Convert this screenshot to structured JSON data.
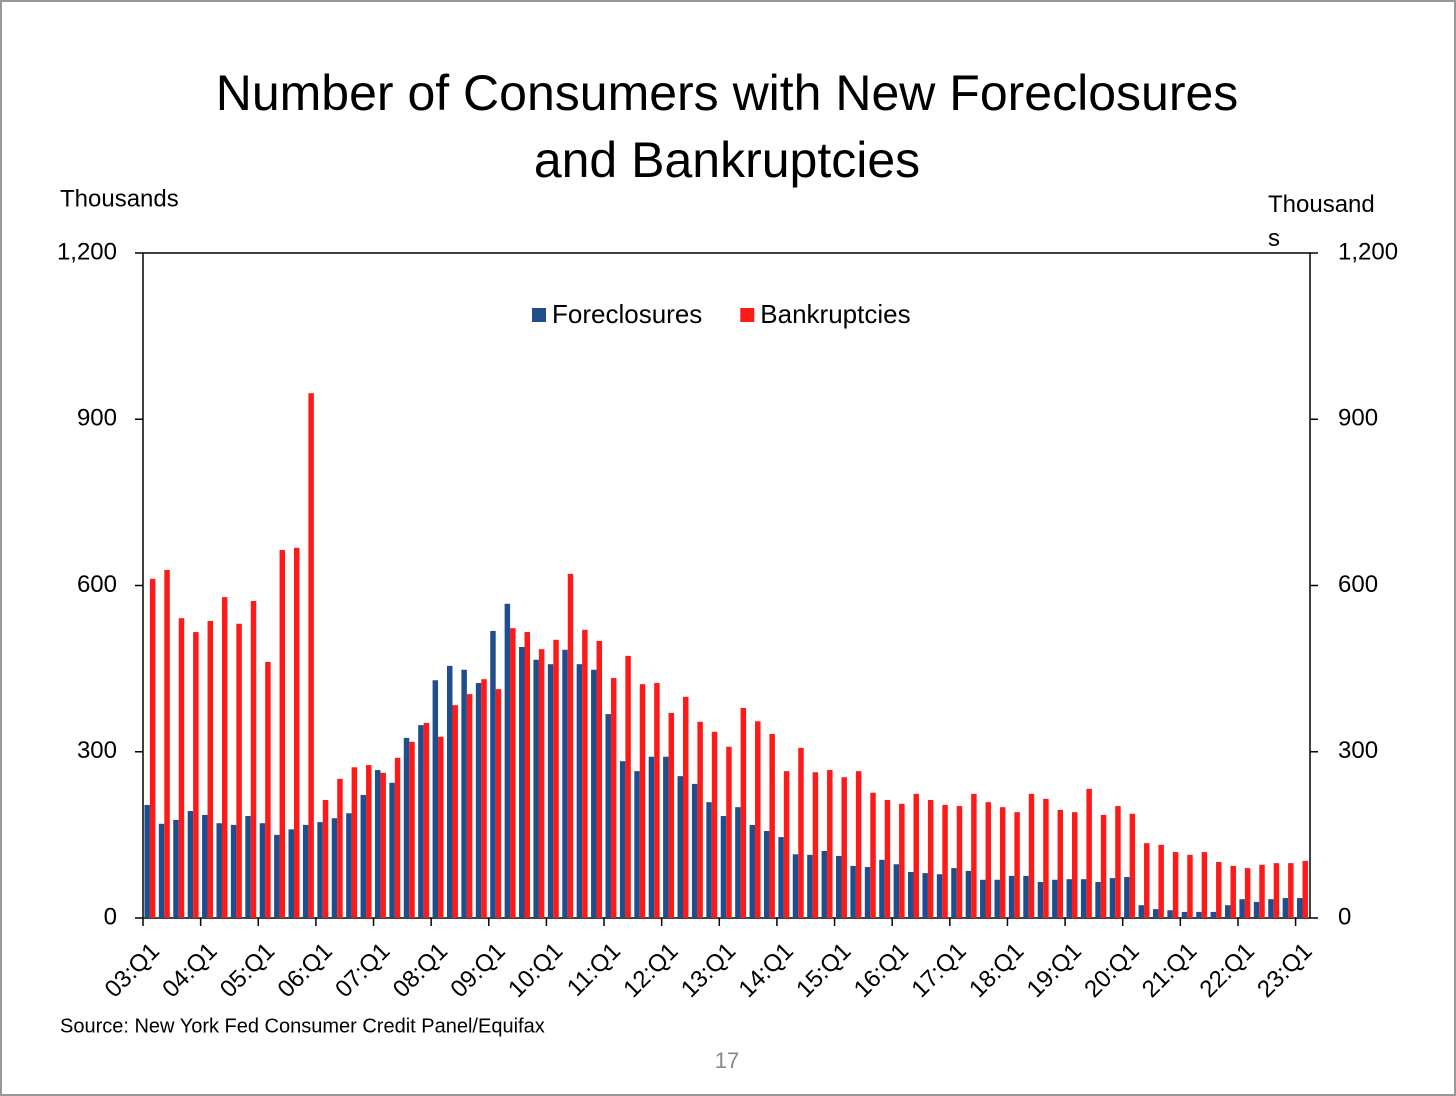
{
  "chart_data": {
    "type": "bar",
    "title": "Number of Consumers with New Foreclosures and Bankruptcies",
    "y_label": "Thousands",
    "y2_label": "Thousands",
    "source": "Source: New York Fed Consumer Credit Panel/Equifax",
    "page_number": "17",
    "categories": [
      "03:Q1",
      null,
      null,
      null,
      "04:Q1",
      null,
      null,
      null,
      "05:Q1",
      null,
      null,
      null,
      "06:Q1",
      null,
      null,
      null,
      "07:Q1",
      null,
      null,
      null,
      "08:Q1",
      null,
      null,
      null,
      "09:Q1",
      null,
      null,
      null,
      "10:Q1",
      null,
      null,
      null,
      "11:Q1",
      null,
      null,
      null,
      "12:Q1",
      null,
      null,
      null,
      "13:Q1",
      null,
      null,
      null,
      "14:Q1",
      null,
      null,
      null,
      "15:Q1",
      null,
      null,
      null,
      "16:Q1",
      null,
      null,
      null,
      "17:Q1",
      null,
      null,
      null,
      "18:Q1",
      null,
      null,
      null,
      "19:Q1",
      null,
      null,
      null,
      "20:Q1",
      null,
      null,
      null,
      "21:Q1",
      null,
      null,
      null,
      "22:Q1",
      null,
      null,
      null,
      "23:Q1"
    ],
    "series": [
      {
        "name": "Foreclosures",
        "color": "#1f4e8c",
        "values": [
          204,
          170,
          177,
          193,
          186,
          171,
          168,
          184,
          171,
          150,
          160,
          168,
          173,
          180,
          189,
          222,
          267,
          244,
          325,
          348,
          429,
          455,
          448,
          424,
          518,
          567,
          489,
          466,
          458,
          484,
          458,
          448,
          368,
          283,
          265,
          291,
          291,
          256,
          242,
          209,
          184,
          200,
          168,
          157,
          146,
          115,
          114,
          121,
          112,
          94,
          92,
          105,
          97,
          83,
          81,
          79,
          90,
          85,
          69,
          69,
          76,
          76,
          65,
          69,
          70,
          70,
          65,
          72,
          74,
          23,
          16,
          14,
          11,
          11,
          11,
          23,
          34,
          29,
          34,
          36,
          36
        ]
      },
      {
        "name": "Bankruptcies",
        "color": "#ff1a1a",
        "values": [
          612,
          628,
          541,
          516,
          536,
          579,
          531,
          572,
          462,
          664,
          668,
          947,
          213,
          251,
          272,
          276,
          262,
          289,
          318,
          352,
          327,
          384,
          404,
          431,
          413,
          523,
          516,
          485,
          502,
          621,
          520,
          500,
          433,
          473,
          422,
          424,
          370,
          399,
          354,
          336,
          309,
          379,
          355,
          332,
          265,
          307,
          263,
          267,
          254,
          265,
          226,
          213,
          206,
          224,
          213,
          204,
          202,
          224,
          209,
          200,
          191,
          224,
          215,
          195,
          191,
          233,
          186,
          202,
          188,
          135,
          132,
          119,
          114,
          119,
          101,
          94,
          90,
          96,
          99,
          99,
          103
        ]
      }
    ],
    "ylim": [
      0,
      1200
    ],
    "yticks": [
      0,
      300,
      600,
      900,
      {
        "value": 1200,
        "label": "1,200"
      }
    ],
    "y2lim": [
      0,
      1200
    ],
    "y2ticks": [
      0,
      300,
      600,
      900,
      {
        "value": 1200,
        "label": "1,200"
      }
    ],
    "legend": "top"
  }
}
